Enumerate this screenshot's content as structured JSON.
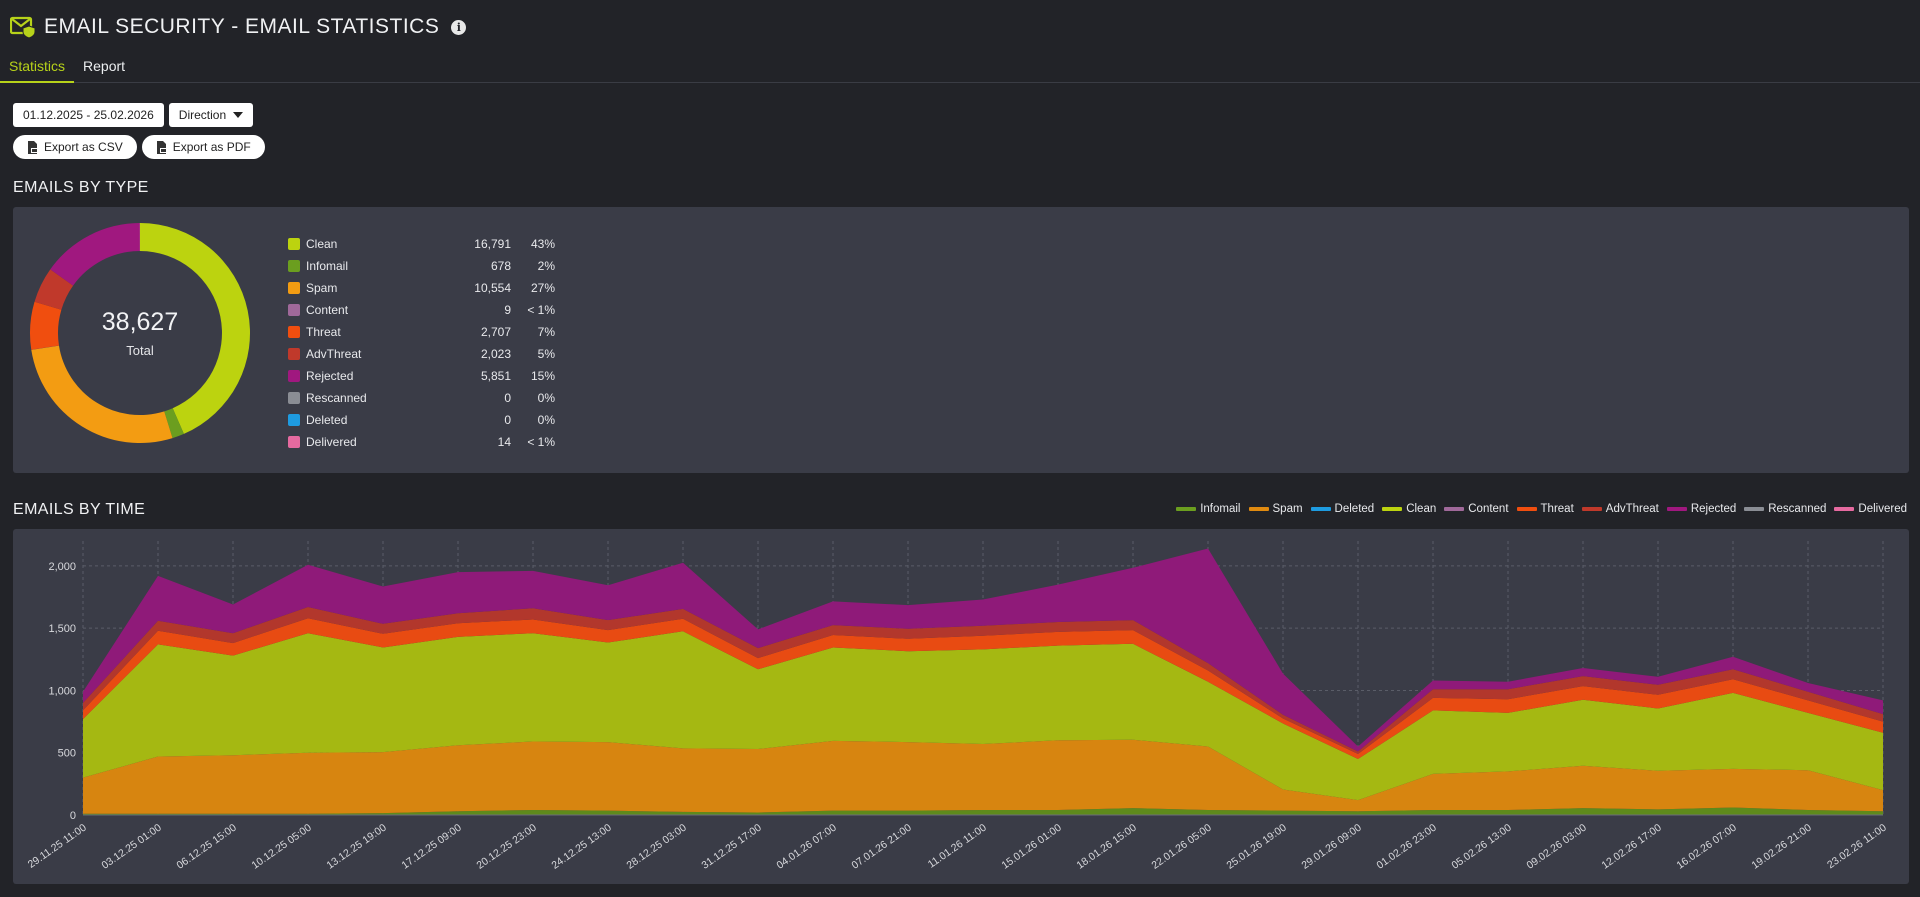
{
  "header": {
    "title": "EMAIL SECURITY - EMAIL STATISTICS",
    "info_glyph": "i"
  },
  "tabs": [
    {
      "label": "Statistics",
      "active": true
    },
    {
      "label": "Report",
      "active": false
    }
  ],
  "toolbar": {
    "date_range": "01.12.2025 - 25.02.2026",
    "direction_label": "Direction",
    "export_csv": "Export as CSV",
    "export_pdf": "Export as PDF"
  },
  "emails_by_type": {
    "title": "EMAILS BY TYPE",
    "total_value": "38,627",
    "total_label": "Total",
    "items": [
      {
        "name": "Clean",
        "value": "16,791",
        "pct": "43%",
        "color": "#bcd30f"
      },
      {
        "name": "Infomail",
        "value": "678",
        "pct": "2%",
        "color": "#6b9e1f"
      },
      {
        "name": "Spam",
        "value": "10,554",
        "pct": "27%",
        "color": "#f39c12"
      },
      {
        "name": "Content",
        "value": "9",
        "pct": "< 1%",
        "color": "#a0699a"
      },
      {
        "name": "Threat",
        "value": "2,707",
        "pct": "7%",
        "color": "#f04e0f"
      },
      {
        "name": "AdvThreat",
        "value": "2,023",
        "pct": "5%",
        "color": "#c0392b"
      },
      {
        "name": "Rejected",
        "value": "5,851",
        "pct": "15%",
        "color": "#a0187f"
      },
      {
        "name": "Rescanned",
        "value": "0",
        "pct": "0%",
        "color": "#8a8d94"
      },
      {
        "name": "Deleted",
        "value": "0",
        "pct": "0%",
        "color": "#1e9be0"
      },
      {
        "name": "Delivered",
        "value": "14",
        "pct": "< 1%",
        "color": "#e66aa0"
      }
    ]
  },
  "emails_by_time": {
    "title": "EMAILS BY TIME",
    "legend": [
      {
        "name": "Infomail",
        "color": "#6b9e1f"
      },
      {
        "name": "Spam",
        "color": "#e08a10"
      },
      {
        "name": "Deleted",
        "color": "#1e9be0"
      },
      {
        "name": "Clean",
        "color": "#bcd30f"
      },
      {
        "name": "Content",
        "color": "#a0699a"
      },
      {
        "name": "Threat",
        "color": "#f04e0f"
      },
      {
        "name": "AdvThreat",
        "color": "#c0392b"
      },
      {
        "name": "Rejected",
        "color": "#a0187f"
      },
      {
        "name": "Rescanned",
        "color": "#8a8d94"
      },
      {
        "name": "Delivered",
        "color": "#e66aa0"
      }
    ]
  },
  "chart_data": {
    "type": "area",
    "stacked": true,
    "title": "",
    "xlabel": "",
    "ylabel": "",
    "ylim": [
      0,
      2200
    ],
    "yticks": [
      "0",
      "500",
      "1,000",
      "1,500",
      "2,000"
    ],
    "ytick_values": [
      0,
      500,
      1000,
      1500,
      2000
    ],
    "grid": true,
    "legend_placement": "top-right",
    "x": [
      "29.11.25 11:00",
      "03.12.25 01:00",
      "06.12.25 15:00",
      "10.12.25 05:00",
      "13.12.25 19:00",
      "17.12.25 09:00",
      "20.12.25 23:00",
      "24.12.25 13:00",
      "28.12.25 03:00",
      "31.12.25 17:00",
      "04.01.26 07:00",
      "07.01.26 21:00",
      "11.01.26 11:00",
      "15.01.26 01:00",
      "18.01.26 15:00",
      "22.01.26 05:00",
      "25.01.26 19:00",
      "29.01.26 09:00",
      "01.02.26 23:00",
      "05.02.26 13:00",
      "09.02.26 03:00",
      "12.02.26 17:00",
      "16.02.26 07:00",
      "19.02.26 21:00",
      "23.02.26 11:00"
    ],
    "series": [
      {
        "name": "Infomail",
        "color": "#5e8a1c",
        "values": [
          10,
          10,
          10,
          10,
          15,
          30,
          40,
          35,
          25,
          20,
          35,
          35,
          40,
          40,
          55,
          40,
          35,
          30,
          40,
          40,
          55,
          45,
          60,
          40,
          30
        ]
      },
      {
        "name": "Spam",
        "color": "#d78510",
        "values": [
          290,
          460,
          470,
          490,
          490,
          530,
          550,
          550,
          510,
          510,
          560,
          550,
          530,
          560,
          550,
          510,
          170,
          90,
          290,
          310,
          340,
          310,
          310,
          320,
          170
        ]
      },
      {
        "name": "Clean",
        "color": "#a5b812",
        "values": [
          470,
          900,
          800,
          960,
          840,
          870,
          870,
          800,
          940,
          640,
          750,
          730,
          760,
          760,
          770,
          520,
          530,
          330,
          510,
          470,
          530,
          500,
          610,
          460,
          460
        ]
      },
      {
        "name": "Threat",
        "color": "#e84b12",
        "values": [
          70,
          110,
          100,
          120,
          110,
          110,
          110,
          100,
          100,
          90,
          100,
          100,
          110,
          110,
          110,
          90,
          40,
          40,
          100,
          110,
          110,
          110,
          110,
          100,
          90
        ]
      },
      {
        "name": "AdvThreat",
        "color": "#b2372c",
        "values": [
          60,
          80,
          80,
          90,
          80,
          80,
          90,
          80,
          80,
          80,
          80,
          80,
          80,
          80,
          80,
          60,
          30,
          20,
          70,
          80,
          80,
          80,
          80,
          70,
          60
        ]
      },
      {
        "name": "Rejected",
        "color": "#8f1a79",
        "values": [
          90,
          360,
          230,
          340,
          300,
          330,
          300,
          280,
          370,
          150,
          190,
          190,
          210,
          300,
          420,
          920,
          330,
          40,
          70,
          60,
          65,
          65,
          100,
          70,
          110
        ]
      }
    ]
  }
}
